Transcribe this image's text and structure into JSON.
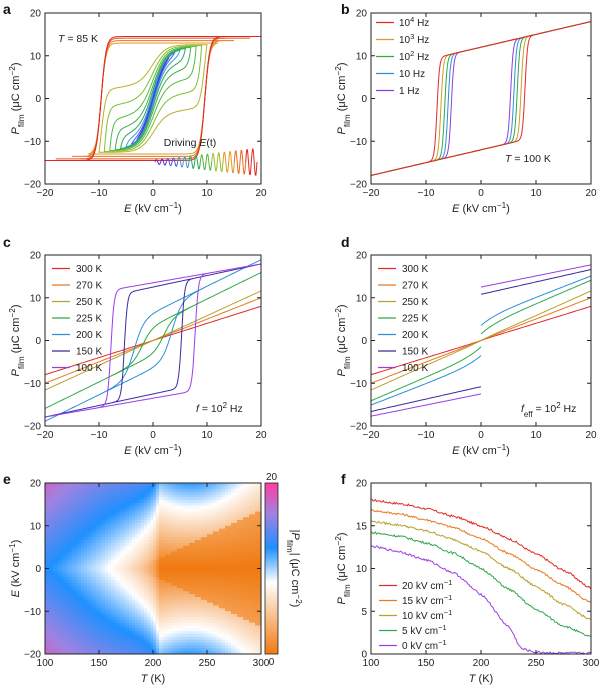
{
  "chart_data": [
    {
      "panel": "a",
      "type": "line",
      "xlabel": "E (kV cm⁻¹)",
      "ylabel": "P_film (μC cm⁻²)",
      "xlim": [
        -20,
        20
      ],
      "ylim": [
        -20,
        20
      ],
      "xticks": [
        -20,
        -10,
        0,
        10,
        20
      ],
      "yticks": [
        -20,
        -10,
        0,
        10,
        20
      ],
      "annotation": "T = 85 K",
      "inset_label": "Driving E(t)",
      "series": [
        {
          "amplitude": 3,
          "color": "#5b2be0"
        },
        {
          "amplitude": 4,
          "color": "#3d5ee8"
        },
        {
          "amplitude": 5,
          "color": "#3aa0d8"
        },
        {
          "amplitude": 6,
          "color": "#2aa55a"
        },
        {
          "amplitude": 7,
          "color": "#38b04a"
        },
        {
          "amplitude": 8,
          "color": "#52b940"
        },
        {
          "amplitude": 9,
          "color": "#7fbf2d"
        },
        {
          "amplitude": 10,
          "color": "#b8b02a"
        },
        {
          "amplitude": 12,
          "color": "#e09a24"
        },
        {
          "amplitude": 15,
          "color": "#e8751d"
        },
        {
          "amplitude": 18,
          "color": "#e85520"
        },
        {
          "amplitude": 20,
          "color": "#dd2a22"
        }
      ]
    },
    {
      "panel": "b",
      "type": "line",
      "xlabel": "E (kV cm⁻¹)",
      "ylabel": "P_film (μC cm⁻²)",
      "xlim": [
        -20,
        20
      ],
      "ylim": [
        -20,
        20
      ],
      "xticks": [
        -20,
        -10,
        0,
        10,
        20
      ],
      "yticks": [
        -20,
        -10,
        0,
        10,
        20
      ],
      "annotation": "T = 100 K",
      "legend_position": "top-left",
      "series": [
        {
          "name": "10⁴ Hz",
          "coercive_field": 8.0,
          "color": "#e02a25"
        },
        {
          "name": "10³ Hz",
          "coercive_field": 7.3,
          "color": "#c9a227"
        },
        {
          "name": "10² Hz",
          "coercive_field": 6.6,
          "color": "#2fa84a"
        },
        {
          "name": "10 Hz",
          "coercive_field": 6.0,
          "color": "#2a8fd6"
        },
        {
          "name": "1 Hz",
          "coercive_field": 5.4,
          "color": "#8e3ee0"
        }
      ]
    },
    {
      "panel": "c",
      "type": "line",
      "xlabel": "E (kV cm⁻¹)",
      "ylabel": "P_film (μC cm⁻²)",
      "xlim": [
        -20,
        20
      ],
      "ylim": [
        -20,
        20
      ],
      "xticks": [
        -20,
        -10,
        0,
        10,
        20
      ],
      "yticks": [
        -20,
        -10,
        0,
        10,
        20
      ],
      "annotation": "f = 10² Hz",
      "legend_position": "top-left",
      "series": [
        {
          "name": "300 K",
          "color": "#e02a25"
        },
        {
          "name": "270 K",
          "color": "#e87a22"
        },
        {
          "name": "250 K",
          "color": "#b8a02a"
        },
        {
          "name": "225 K",
          "color": "#2fa84a"
        },
        {
          "name": "200 K",
          "color": "#2a8fd6"
        },
        {
          "name": "150 K",
          "color": "#3a2aa0"
        },
        {
          "name": "100 K",
          "color": "#9a3ee8"
        }
      ]
    },
    {
      "panel": "d",
      "type": "line",
      "xlabel": "E (kV cm⁻¹)",
      "ylabel": "P_film (μC cm⁻²)",
      "xlim": [
        -20,
        20
      ],
      "ylim": [
        -20,
        20
      ],
      "xticks": [
        -20,
        -10,
        0,
        10,
        20
      ],
      "yticks": [
        -20,
        -10,
        0,
        10,
        20
      ],
      "annotation": "f_eff = 10² Hz",
      "legend_position": "top-left",
      "series": [
        {
          "name": "300 K",
          "color": "#e02a25"
        },
        {
          "name": "270 K",
          "color": "#e87a22"
        },
        {
          "name": "250 K",
          "color": "#b8a02a"
        },
        {
          "name": "225 K",
          "color": "#2fa84a"
        },
        {
          "name": "200 K",
          "color": "#2a8fd6"
        },
        {
          "name": "150 K",
          "color": "#3a2aa0"
        },
        {
          "name": "100 K",
          "color": "#9a3ee8"
        }
      ]
    },
    {
      "panel": "e",
      "type": "heatmap",
      "xlabel": "T (K)",
      "ylabel": "E (kV cm⁻¹)",
      "xlim": [
        100,
        300
      ],
      "ylim": [
        -20,
        20
      ],
      "xticks": [
        100,
        150,
        200,
        250,
        300
      ],
      "yticks": [
        -20,
        -10,
        0,
        10,
        20
      ],
      "colorbar_label": "|P_film| (μC cm⁻²)",
      "colorbar_ticks": [
        0,
        20
      ],
      "colorbar_colors": [
        "#f07a10",
        "#ffffff",
        "#1e90ff",
        "#9b7fe0",
        "#ff3fa0"
      ]
    },
    {
      "panel": "f",
      "type": "line",
      "xlabel": "T (K)",
      "ylabel": "P_film (μC cm⁻²)",
      "xlim": [
        100,
        300
      ],
      "ylim": [
        0,
        20
      ],
      "xticks": [
        100,
        150,
        200,
        250,
        300
      ],
      "yticks": [
        0,
        5,
        10,
        15,
        20
      ],
      "legend_position": "bottom-left",
      "series": [
        {
          "name": "20 kV cm⁻¹",
          "color": "#e02a25",
          "x": [
            100,
            125,
            150,
            175,
            200,
            225,
            250,
            275,
            300
          ],
          "values": [
            18.0,
            17.6,
            17.0,
            16.1,
            15.0,
            13.5,
            11.7,
            9.8,
            7.7
          ]
        },
        {
          "name": "15 kV cm⁻¹",
          "color": "#e87a22",
          "x": [
            100,
            125,
            150,
            175,
            200,
            225,
            250,
            275,
            300
          ],
          "values": [
            16.8,
            16.4,
            15.7,
            14.8,
            13.5,
            11.8,
            9.9,
            8.0,
            6.0
          ]
        },
        {
          "name": "10 kV cm⁻¹",
          "color": "#b8a02a",
          "x": [
            100,
            125,
            150,
            175,
            200,
            225,
            250,
            275,
            300
          ],
          "values": [
            15.5,
            15.1,
            14.4,
            13.4,
            12.0,
            10.0,
            7.9,
            5.8,
            4.0
          ]
        },
        {
          "name": "5 kV cm⁻¹",
          "color": "#2fa84a",
          "x": [
            100,
            125,
            150,
            175,
            200,
            225,
            250,
            275,
            300
          ],
          "values": [
            14.2,
            13.8,
            13.0,
            11.8,
            10.0,
            7.6,
            5.2,
            3.3,
            2.0
          ]
        },
        {
          "name": "0 kV cm⁻¹",
          "color": "#9a3ee8",
          "x": [
            100,
            125,
            150,
            175,
            200,
            225,
            237,
            250,
            275,
            300
          ],
          "values": [
            12.6,
            12.0,
            11.0,
            9.5,
            7.0,
            3.2,
            0.6,
            0.2,
            0.1,
            0.1
          ]
        }
      ]
    }
  ]
}
